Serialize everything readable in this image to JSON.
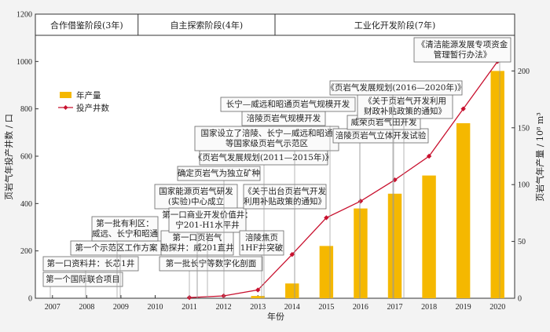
{
  "chart_data": {
    "type": "bar+line",
    "title": "",
    "xlabel": "年份",
    "ylabel_left": "页岩气年投产井数 / 口",
    "ylabel_right": "页岩气年产量 / 10⁸ m³",
    "categories": [
      "2007",
      "2008",
      "2009",
      "2010",
      "2011",
      "2012",
      "2013",
      "2014",
      "2015",
      "2016",
      "2017",
      "2018",
      "2019",
      "2020"
    ],
    "ylim_left": [
      0,
      1200
    ],
    "yticks_left": [
      0,
      200,
      400,
      600,
      800,
      1000,
      1200
    ],
    "ylim_right": [
      0,
      250
    ],
    "yticks_right": [
      0,
      50,
      100,
      150,
      200
    ],
    "series": [
      {
        "name": "年产量",
        "type": "bar",
        "axis": "right",
        "color": "#f5b800",
        "values": [
          0,
          0,
          0,
          0,
          0,
          0,
          2,
          13,
          46,
          79,
          92,
          108,
          154,
          200
        ]
      },
      {
        "name": "投产井数",
        "type": "line",
        "axis": "left",
        "color": "#c8102e",
        "values": [
          null,
          null,
          null,
          null,
          3,
          10,
          35,
          185,
          340,
          410,
          500,
          600,
          800,
          1000
        ]
      }
    ],
    "stages": [
      {
        "label": "合作借鉴阶段(3年)",
        "from": "2007",
        "to": "2009"
      },
      {
        "label": "自主探索阶段(4年)",
        "from": "2010",
        "to": "2013"
      },
      {
        "label": "工业化开发阶段(7年)",
        "from": "2014",
        "to": "2020"
      }
    ],
    "annotations": [
      {
        "year": "2007",
        "lines": [
          "第一个国际联合项目"
        ]
      },
      {
        "year": "2008",
        "lines": [
          "第一口资料井：长芯1井"
        ]
      },
      {
        "year": "2009",
        "lines": [
          "第一个示范区工作方案"
        ]
      },
      {
        "year": "2009",
        "lines": [
          "第一批有利区：",
          "威远、长宁和昭通"
        ]
      },
      {
        "year": "2011",
        "lines": [
          "第一批长宁等数字化剖面"
        ]
      },
      {
        "year": "2011",
        "lines": [
          "第一口页岩气",
          "勘探井：威201直井"
        ]
      },
      {
        "year": "2012",
        "lines": [
          "国家能源页岩气研发",
          "(实验)中心成立"
        ]
      },
      {
        "year": "2012",
        "lines": [
          "第一口商业开发价值井：",
          "宁201-H1水平井"
        ]
      },
      {
        "year": "2013",
        "lines": [
          "涪陵焦页",
          "1HF井突破"
        ]
      },
      {
        "year": "2012",
        "lines": [
          "确定页岩气为独立矿种"
        ]
      },
      {
        "year": "2014",
        "lines": [
          "《关于出台页岩气开发",
          "利用补贴政策的通知》"
        ]
      },
      {
        "year": "2012",
        "lines": [
          "《页岩气发展规划(2011—2015年)》"
        ]
      },
      {
        "year": "2013",
        "lines": [
          "国家设立了涪陵、长宁—威远和昭通",
          "等国家级页岩气示范区"
        ]
      },
      {
        "year": "2015",
        "lines": [
          "涪陵页岩气规模开发"
        ]
      },
      {
        "year": "2016",
        "lines": [
          "长宁—威远和昭通页岩气规模开发"
        ]
      },
      {
        "year": "2016",
        "lines": [
          "涪陵页岩气立体开发试验"
        ]
      },
      {
        "year": "2017",
        "lines": [
          "威荣页岩气田开发"
        ]
      },
      {
        "year": "2017",
        "lines": [
          "《关于页岩气开发利用",
          "财政补贴政策的通知》"
        ]
      },
      {
        "year": "2016",
        "lines": [
          "《页岩气发展规划(2016—2020年)》"
        ]
      },
      {
        "year": "2020",
        "lines": [
          "《清洁能源发展专项资金",
          "管理暂行办法》"
        ]
      }
    ]
  }
}
